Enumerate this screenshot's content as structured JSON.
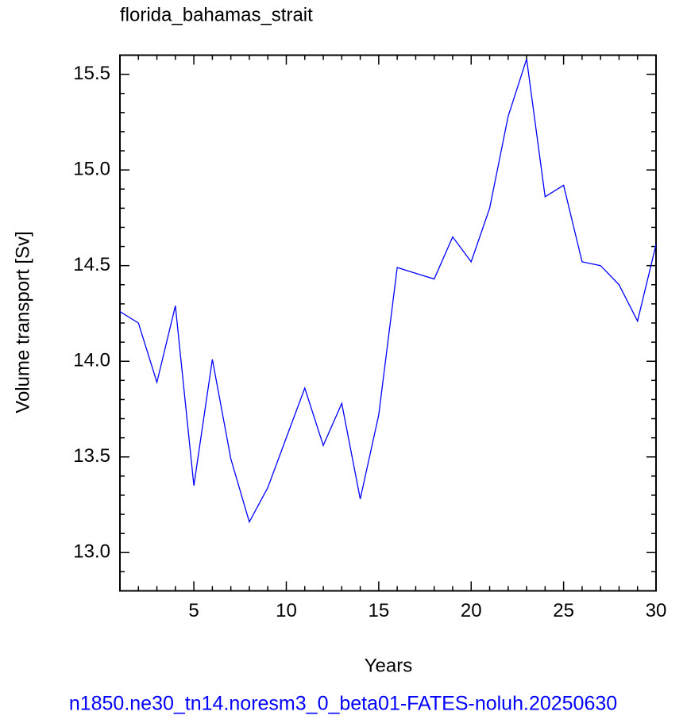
{
  "chart_data": {
    "type": "line",
    "title": "florida_bahamas_strait",
    "x_label": "Years",
    "y_label": "Volume transport [Sv]",
    "footer": "n1850.ne30_tn14.noresm3_0_beta01-FATES-noluh.20250630",
    "x": [
      1,
      2,
      3,
      4,
      5,
      6,
      7,
      8,
      9,
      10,
      11,
      12,
      13,
      14,
      15,
      16,
      17,
      18,
      19,
      20,
      21,
      22,
      23,
      24,
      25,
      26,
      27,
      28,
      29,
      30
    ],
    "series": [
      {
        "color": "#0000ff",
        "values": [
          14.26,
          14.2,
          13.89,
          14.29,
          13.35,
          14.01,
          13.49,
          13.16,
          13.34,
          13.6,
          13.86,
          13.56,
          13.78,
          13.28,
          13.72,
          14.49,
          14.46,
          14.43,
          14.65,
          14.52,
          14.8,
          15.28,
          15.58,
          14.86,
          14.92,
          14.52,
          14.5,
          14.4,
          14.21,
          14.61
        ]
      }
    ],
    "xlim": [
      1,
      30
    ],
    "ylim": [
      12.8,
      15.6
    ],
    "xticks": [
      5,
      10,
      15,
      20,
      25,
      30
    ],
    "yticks": [
      {
        "value": 13,
        "label": "13.0"
      },
      13.5,
      {
        "value": 14,
        "label": "14.0"
      },
      14.5,
      {
        "value": 15,
        "label": "15.0"
      },
      15.5
    ],
    "xminorticks": [
      1,
      2,
      3,
      4,
      6,
      7,
      8,
      9,
      11,
      12,
      13,
      14,
      16,
      17,
      18,
      19,
      21,
      22,
      23,
      24,
      26,
      27,
      28,
      29
    ],
    "yminorticks": [
      12.8,
      12.9,
      13.1,
      13.2,
      13.3,
      13.4,
      13.6,
      13.7,
      13.8,
      13.9,
      14.1,
      14.2,
      14.3,
      14.4,
      14.6,
      14.7,
      14.8,
      14.9,
      15.1,
      15.2,
      15.3,
      15.4,
      15.6
    ],
    "grid": false
  }
}
